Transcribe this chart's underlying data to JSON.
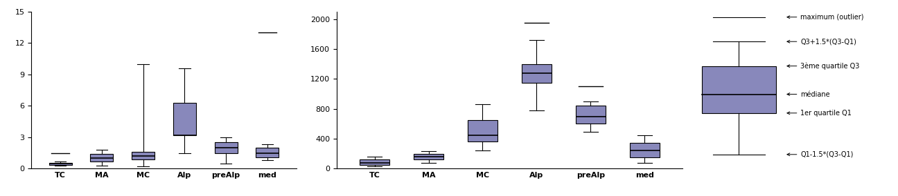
{
  "categories": [
    "TC",
    "MA",
    "MC",
    "Alp",
    "preAlp",
    "med"
  ],
  "slope_boxes": [
    {
      "whislo": 0.3,
      "q1": 0.35,
      "med": 0.45,
      "q3": 0.55,
      "whishi": 0.65,
      "fliers": [
        1.5
      ]
    },
    {
      "whislo": 0.3,
      "q1": 0.7,
      "med": 1.0,
      "q3": 1.4,
      "whishi": 1.8,
      "fliers": []
    },
    {
      "whislo": 0.2,
      "q1": 0.9,
      "med": 1.2,
      "q3": 1.6,
      "whishi": 10.0,
      "fliers": []
    },
    {
      "whislo": 1.5,
      "q1": 3.2,
      "med": 3.2,
      "q3": 6.3,
      "whishi": 9.6,
      "fliers": []
    },
    {
      "whislo": 0.5,
      "q1": 1.5,
      "med": 2.0,
      "q3": 2.5,
      "whishi": 3.0,
      "fliers": []
    },
    {
      "whislo": 0.8,
      "q1": 1.1,
      "med": 1.5,
      "q3": 2.0,
      "whishi": 2.3,
      "fliers": [
        13.0
      ]
    }
  ],
  "altitude_boxes": [
    {
      "whislo": 30,
      "q1": 50,
      "med": 80,
      "q3": 120,
      "whishi": 160,
      "fliers": []
    },
    {
      "whislo": 80,
      "q1": 120,
      "med": 160,
      "q3": 200,
      "whishi": 230,
      "fliers": []
    },
    {
      "whislo": 240,
      "q1": 360,
      "med": 450,
      "q3": 650,
      "whishi": 860,
      "fliers": []
    },
    {
      "whislo": 780,
      "q1": 1150,
      "med": 1280,
      "q3": 1400,
      "whishi": 1720,
      "fliers": [
        1950
      ]
    },
    {
      "whislo": 490,
      "q1": 600,
      "med": 700,
      "q3": 840,
      "whishi": 900,
      "fliers": [
        1100
      ]
    },
    {
      "whislo": 80,
      "q1": 150,
      "med": 240,
      "q3": 340,
      "whishi": 450,
      "fliers": []
    }
  ],
  "slope_ylim": [
    0,
    15
  ],
  "slope_yticks": [
    0,
    3,
    6,
    9,
    12,
    15
  ],
  "altitude_ylim": [
    0,
    2100
  ],
  "altitude_yticks": [
    0,
    400,
    800,
    1200,
    1600,
    2000
  ],
  "box_facecolor": "#8888bb",
  "box_edgecolor": "#000000",
  "median_color": "#000000",
  "whisker_color": "#000000",
  "cap_color": "#000000",
  "flier_color": "#000000",
  "background_color": "#ffffff",
  "legend_labels": [
    "maximum (outlier)",
    "Q3+1.5*(Q3-Q1)",
    "3ème quartile Q3",
    "médiane",
    "1er quartile Q1",
    "Q1-1.5*(Q3-Q1)"
  ]
}
